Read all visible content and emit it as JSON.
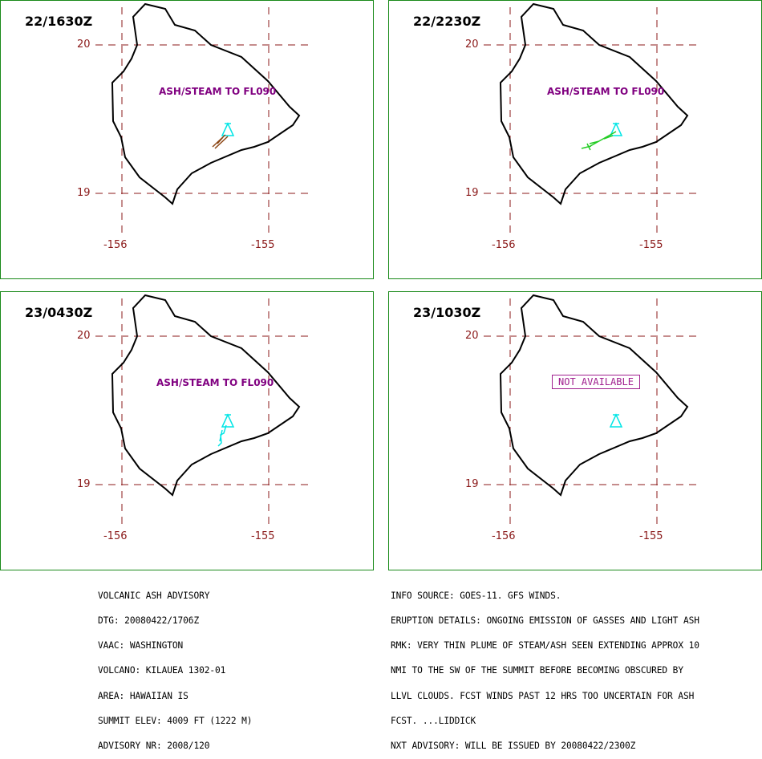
{
  "panels": [
    {
      "time": "22/1630Z",
      "label": "ASH/STEAM TO FL090",
      "label_style": "ash",
      "plume_color": "#8b4513"
    },
    {
      "time": "22/2230Z",
      "label": "ASH/STEAM TO FL090",
      "label_style": "ash",
      "plume_color": "#22cc22"
    },
    {
      "time": "23/0430Z",
      "label": "ASH/STEAM TO FL090",
      "label_style": "ash",
      "plume_color": "#00e5e5"
    },
    {
      "time": "23/1030Z",
      "label": "NOT AVAILABLE",
      "label_style": "boxed",
      "plume_color": ""
    }
  ],
  "grid": {
    "lat_labels": [
      "20",
      "19"
    ],
    "lon_labels": [
      "-156",
      "-155"
    ],
    "line_color": "#8b1a1a"
  },
  "colors": {
    "coast": "#000000",
    "volcano_symbol": "#00e5e5",
    "panel_border": "#1a8a1a"
  },
  "advisory_left": [
    "VOLCANIC ASH ADVISORY",
    "DTG: 20080422/1706Z",
    "VAAC: WASHINGTON",
    "VOLCANO: KILAUEA 1302-01",
    "AREA: HAWAIIAN IS",
    "SUMMIT ELEV: 4009 FT (1222 M)",
    "ADVISORY NR: 2008/120"
  ],
  "advisory_right": [
    "INFO SOURCE: GOES-11. GFS WINDS.",
    "ERUPTION DETAILS: ONGOING EMISSION OF GASSES AND LIGHT ASH",
    "RMK: VERY THIN PLUME OF STEAM/ASH SEEN EXTENDING APPROX 10",
    "NMI TO THE SW OF THE SUMMIT BEFORE BECOMING OBSCURED BY",
    "LLVL CLOUDS. FCST WINDS PAST 12 HRS TOO UNCERTAIN FOR ASH",
    "FCST. ...LIDDICK",
    "NXT ADVISORY: WILL BE ISSUED BY 20080422/2300Z"
  ]
}
